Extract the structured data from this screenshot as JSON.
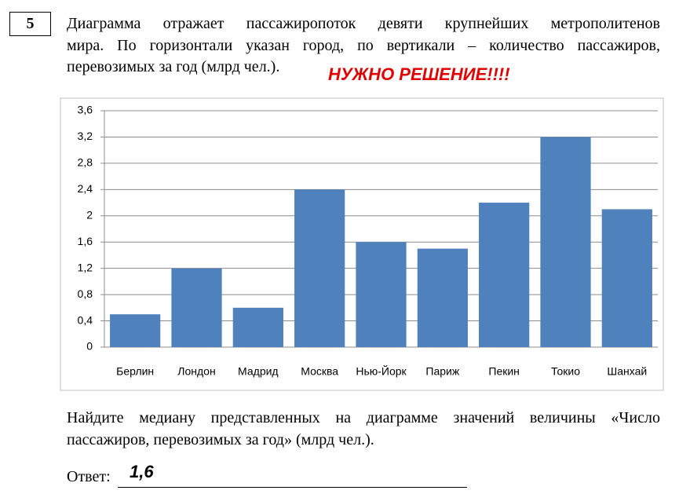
{
  "problem": {
    "number": "5",
    "text_lines": [
      "Диаграмма отражает пассажиропоток девяти крупнейших метрополитенов",
      "мира. По горизонтали указан город, по вертикали – количество пассажиров,",
      "перевозимых за год (млрд чел.)."
    ],
    "note": "НУЖНО РЕШЕНИЕ!!!!",
    "question_lines": [
      "Найдите медиану представленных на диаграмме значений величины «Число",
      "пассажиров, перевозимых за год» (млрд чел.)."
    ],
    "answer_label": "Ответ:",
    "answer": "1,6"
  },
  "chart_data": {
    "type": "bar",
    "categories": [
      "Берлин",
      "Лондон",
      "Мадрид",
      "Москва",
      "Нью-Йорк",
      "Париж",
      "Пекин",
      "Токио",
      "Шанхай"
    ],
    "values": [
      0.5,
      1.2,
      0.6,
      2.4,
      1.6,
      1.5,
      2.2,
      3.2,
      2.1
    ],
    "color": "#4f81bd",
    "ylim": [
      0,
      3.6
    ],
    "yticks": [
      0,
      {
        "value": 0.4,
        "label": "0,4"
      },
      {
        "value": 0.8,
        "label": "0,8"
      },
      {
        "value": 1.2,
        "label": "1,2"
      },
      {
        "value": 1.6,
        "label": "1,6"
      },
      2,
      {
        "value": 2.4,
        "label": "2,4"
      },
      {
        "value": 2.8,
        "label": "2,8"
      },
      {
        "value": 3.2,
        "label": "3,2"
      },
      {
        "value": 3.6,
        "label": "3,6"
      }
    ],
    "grid": true
  }
}
